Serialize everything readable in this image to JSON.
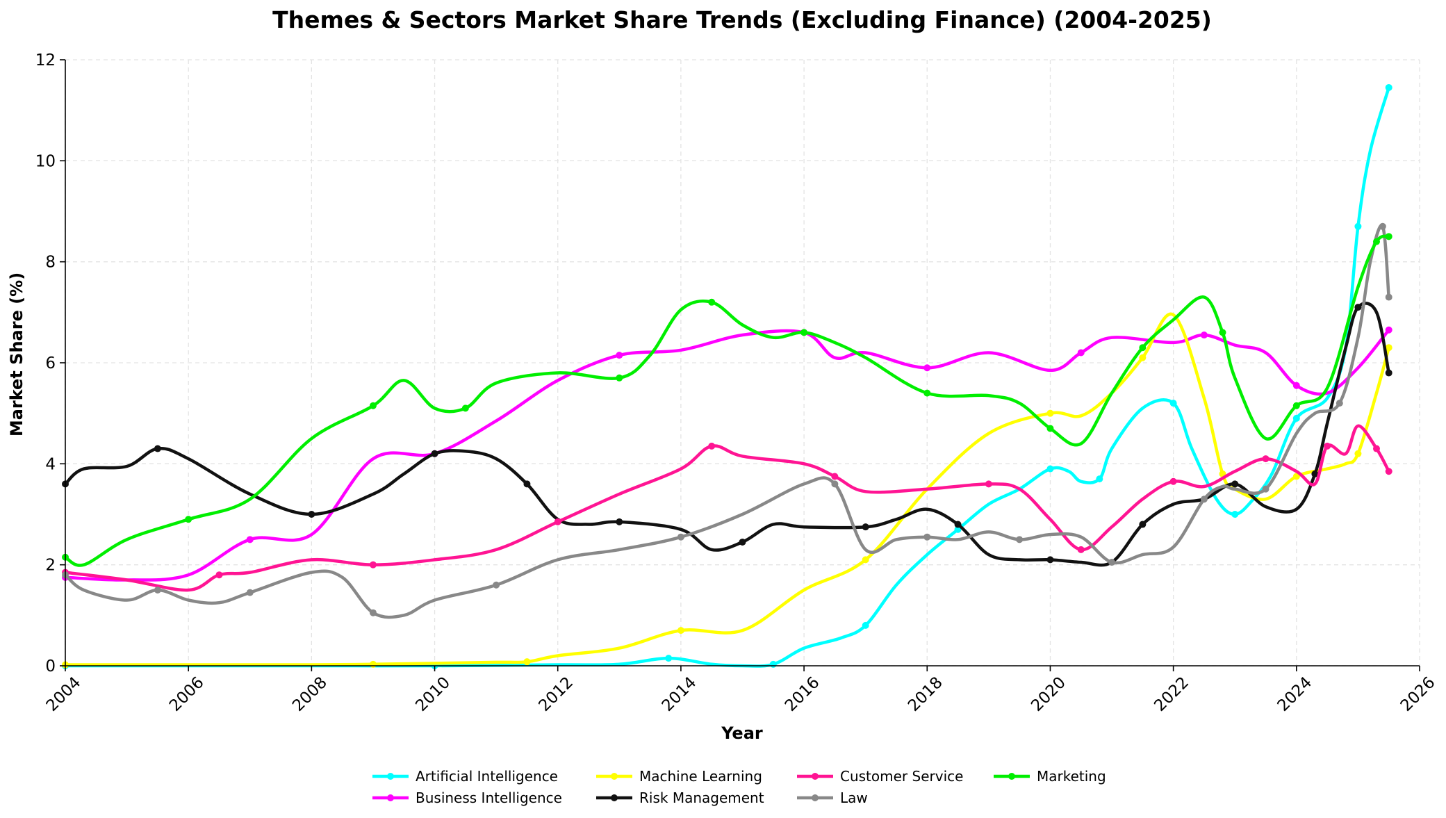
{
  "chart_data": {
    "type": "line",
    "title": "Themes & Sectors Market Share Trends (Excluding Finance) (2004-2025)",
    "xlabel": "Year",
    "ylabel": "Market Share (%)",
    "xlim": [
      2004,
      2026
    ],
    "ylim": [
      0,
      12
    ],
    "x_ticks": [
      "2004",
      "2006",
      "2008",
      "2010",
      "2012",
      "2014",
      "2016",
      "2018",
      "2020",
      "2022",
      "2024",
      "2026"
    ],
    "y_ticks": [
      "0",
      "2",
      "4",
      "6",
      "8",
      "10",
      "12"
    ],
    "grid": true,
    "legend_position": "bottom-center",
    "series": [
      {
        "name": "Artificial Intelligence",
        "color": "#00FFFF",
        "x": [
          2004,
          2006,
          2008,
          2010,
          2012,
          2013,
          2013.8,
          2014.5,
          2015,
          2015.5,
          2016,
          2016.6,
          2017,
          2017.5,
          2018,
          2018.5,
          2019,
          2019.5,
          2020,
          2020.3,
          2020.5,
          2020.8,
          2021,
          2021.5,
          2022,
          2022.3,
          2022.7,
          2023,
          2023.3,
          2023.6,
          2024,
          2024.5,
          2024.8,
          2025,
          2025.2,
          2025.5
        ],
        "y": [
          0,
          0,
          0,
          0,
          0.02,
          0.03,
          0.15,
          0.03,
          0,
          0.03,
          0.35,
          0.55,
          0.8,
          1.6,
          2.2,
          2.7,
          3.2,
          3.5,
          3.9,
          3.85,
          3.65,
          3.7,
          4.3,
          5.1,
          5.2,
          4.3,
          3.3,
          3.0,
          3.3,
          3.8,
          4.9,
          5.3,
          6.3,
          8.7,
          10.2,
          11.45
        ]
      },
      {
        "name": "Business Intelligence",
        "color": "#FF00FF",
        "x": [
          2004,
          2005,
          2006,
          2007,
          2008,
          2009,
          2010,
          2011,
          2012,
          2013,
          2014,
          2015,
          2016,
          2016.5,
          2017,
          2018,
          2019,
          2020,
          2020.5,
          2021,
          2022,
          2022.5,
          2023,
          2023.5,
          2024,
          2024.5,
          2025,
          2025.5
        ],
        "y": [
          1.75,
          1.7,
          1.8,
          2.5,
          2.6,
          4.1,
          4.2,
          4.85,
          5.65,
          6.15,
          6.25,
          6.55,
          6.6,
          6.1,
          6.2,
          5.9,
          6.2,
          5.85,
          6.2,
          6.5,
          6.4,
          6.55,
          6.35,
          6.2,
          5.55,
          5.4,
          5.9,
          6.65
        ]
      },
      {
        "name": "Machine Learning",
        "color": "#FFFF00",
        "x": [
          2004,
          2006,
          2008,
          2009,
          2010,
          2011,
          2011.5,
          2012,
          2013,
          2014,
          2015,
          2016,
          2017,
          2018,
          2019,
          2020,
          2020.5,
          2021,
          2021.5,
          2022,
          2022.5,
          2022.8,
          2023,
          2023.5,
          2024,
          2024.5,
          2024.8,
          2025,
          2025.3,
          2025.5
        ],
        "y": [
          0.02,
          0.02,
          0.02,
          0.03,
          0.05,
          0.07,
          0.08,
          0.2,
          0.35,
          0.7,
          0.7,
          1.5,
          2.1,
          3.5,
          4.6,
          5.0,
          4.95,
          5.4,
          6.1,
          6.95,
          5.3,
          3.8,
          3.5,
          3.3,
          3.75,
          3.9,
          4.0,
          4.2,
          5.4,
          6.3
        ]
      },
      {
        "name": "Risk Management",
        "color": "#111111",
        "x": [
          2004,
          2004.3,
          2005,
          2005.5,
          2006,
          2007,
          2008,
          2009,
          2009.5,
          2010,
          2010.5,
          2011,
          2011.5,
          2012,
          2012.5,
          2013,
          2014,
          2014.5,
          2015,
          2015.5,
          2016,
          2017,
          2017.5,
          2018,
          2018.5,
          2019,
          2019.5,
          2020,
          2020.5,
          2021,
          2021.5,
          2022,
          2022.5,
          2023,
          2023.5,
          2024,
          2024.3,
          2024.5,
          2024.8,
          2025,
          2025.3,
          2025.5
        ],
        "y": [
          3.6,
          3.9,
          3.95,
          4.3,
          4.1,
          3.4,
          3.0,
          3.4,
          3.8,
          4.2,
          4.25,
          4.1,
          3.6,
          2.9,
          2.8,
          2.85,
          2.7,
          2.3,
          2.45,
          2.8,
          2.75,
          2.75,
          2.9,
          3.1,
          2.8,
          2.2,
          2.1,
          2.1,
          2.05,
          2.05,
          2.8,
          3.2,
          3.3,
          3.6,
          3.15,
          3.1,
          3.8,
          4.8,
          6.3,
          7.1,
          7.0,
          5.8
        ]
      },
      {
        "name": "Customer Service",
        "color": "#FF1493",
        "x": [
          2004,
          2005,
          2006,
          2006.5,
          2007,
          2008,
          2009,
          2010,
          2011,
          2012,
          2013,
          2014,
          2014.5,
          2015,
          2016,
          2016.5,
          2017,
          2018,
          2019,
          2019.5,
          2020,
          2020.5,
          2021,
          2021.5,
          2022,
          2022.5,
          2023,
          2023.5,
          2024,
          2024.3,
          2024.5,
          2024.8,
          2025,
          2025.3,
          2025.5
        ],
        "y": [
          1.85,
          1.7,
          1.5,
          1.8,
          1.85,
          2.1,
          2.0,
          2.1,
          2.3,
          2.85,
          3.4,
          3.9,
          4.35,
          4.15,
          4.0,
          3.75,
          3.45,
          3.5,
          3.6,
          3.5,
          2.9,
          2.3,
          2.75,
          3.3,
          3.65,
          3.55,
          3.85,
          4.1,
          3.85,
          3.6,
          4.35,
          4.2,
          4.75,
          4.3,
          3.85
        ]
      },
      {
        "name": "Law",
        "color": "#888888",
        "x": [
          2004,
          2004.3,
          2005,
          2005.5,
          2006,
          2006.5,
          2007,
          2008,
          2008.5,
          2009,
          2009.5,
          2010,
          2011,
          2012,
          2013,
          2014,
          2015,
          2016,
          2016.5,
          2017,
          2017.5,
          2018,
          2018.5,
          2019,
          2019.5,
          2020,
          2020.5,
          2021,
          2021.5,
          2022,
          2022.5,
          2022.8,
          2023,
          2023.5,
          2024,
          2024.3,
          2024.7,
          2025,
          2025.2,
          2025.4,
          2025.5
        ],
        "y": [
          1.8,
          1.5,
          1.3,
          1.5,
          1.3,
          1.25,
          1.45,
          1.85,
          1.75,
          1.05,
          1.0,
          1.3,
          1.6,
          2.1,
          2.3,
          2.55,
          3.0,
          3.6,
          3.6,
          2.3,
          2.5,
          2.55,
          2.5,
          2.65,
          2.5,
          2.6,
          2.55,
          2.05,
          2.2,
          2.35,
          3.3,
          3.55,
          3.5,
          3.5,
          4.6,
          5.0,
          5.2,
          6.5,
          8.0,
          8.7,
          7.3
        ]
      },
      {
        "name": "Marketing",
        "color": "#00EE00",
        "x": [
          2004,
          2004.3,
          2005,
          2006,
          2007,
          2008,
          2009,
          2009.5,
          2010,
          2010.5,
          2011,
          2012,
          2013,
          2013.5,
          2014,
          2014.5,
          2015,
          2015.5,
          2016,
          2016.5,
          2017,
          2018,
          2019,
          2019.5,
          2020,
          2020.5,
          2021,
          2021.5,
          2022,
          2022.5,
          2022.8,
          2023,
          2023.5,
          2024,
          2024.5,
          2025,
          2025.3,
          2025.5
        ],
        "y": [
          2.15,
          2.0,
          2.5,
          2.9,
          3.3,
          4.5,
          5.15,
          5.65,
          5.1,
          5.1,
          5.6,
          5.8,
          5.7,
          6.15,
          7.05,
          7.2,
          6.75,
          6.5,
          6.6,
          6.4,
          6.1,
          5.4,
          5.35,
          5.2,
          4.7,
          4.4,
          5.4,
          6.3,
          6.85,
          7.3,
          6.6,
          5.7,
          4.5,
          5.15,
          5.5,
          7.5,
          8.4,
          8.5
        ]
      }
    ]
  }
}
